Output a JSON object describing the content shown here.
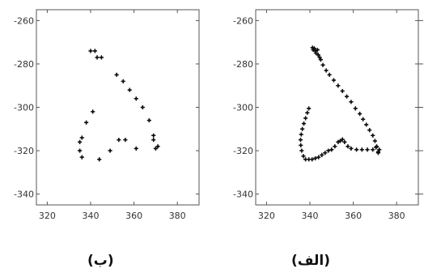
{
  "chart_data": [
    {
      "type": "scatter",
      "caption": "(ب)",
      "xlim": [
        315,
        390
      ],
      "ylim": [
        -345,
        -255
      ],
      "xticks": [
        "320",
        "340",
        "360",
        "380"
      ],
      "yticks": [
        "-260",
        "-280",
        "-300",
        "-320",
        "-340"
      ],
      "x": [
        340,
        342,
        343,
        345,
        352,
        355,
        358,
        361,
        364,
        367,
        369,
        371,
        370,
        369,
        361,
        356,
        353,
        349,
        344,
        336,
        335,
        335,
        336,
        338,
        341
      ],
      "y": [
        -274,
        -274,
        -277,
        -277,
        -285,
        -288,
        -292,
        -296,
        -300,
        -306,
        -313,
        -318,
        -319,
        -315,
        -319,
        -315,
        -315,
        -320,
        -324,
        -323,
        -320,
        -316,
        -314,
        -307,
        -302
      ],
      "grid": false
    },
    {
      "type": "scatter",
      "caption": "(الف)",
      "xlim": [
        315,
        390
      ],
      "ylim": [
        -345,
        -255
      ],
      "xticks": [
        "320",
        "340",
        "360",
        "380"
      ],
      "yticks": [
        "-260",
        "-280",
        "-300",
        "-320",
        "-340"
      ],
      "x": [
        341.2,
        341.5,
        342.0,
        342.5,
        342.8,
        343.5,
        343.8,
        344.5,
        345.0,
        346.0,
        347.5,
        349.0,
        351.0,
        353.0,
        355.0,
        357.0,
        359.0,
        361.0,
        363.0,
        364.5,
        366.0,
        367.5,
        369.0,
        370.0,
        370.8,
        371.5,
        372.0,
        371.5,
        370.5,
        369.0,
        366.5,
        364.0,
        361.5,
        359.0,
        357.5,
        356.0,
        355.0,
        354.0,
        353.0,
        351.5,
        350.0,
        348.5,
        347.0,
        345.5,
        344.0,
        342.5,
        341.0,
        339.5,
        338.0,
        337.0,
        336.2,
        335.8,
        335.7,
        336.0,
        336.5,
        337.2,
        338.0,
        338.8,
        339.5
      ],
      "y": [
        -272.5,
        -273.5,
        -272.8,
        -274.0,
        -275.0,
        -273.5,
        -275.8,
        -277.0,
        -278.0,
        -280.5,
        -283.0,
        -285.0,
        -287.5,
        -290.0,
        -292.5,
        -295.0,
        -297.5,
        -300.5,
        -303.0,
        -305.5,
        -308.0,
        -310.5,
        -313.0,
        -315.5,
        -318.0,
        -320.5,
        -319.5,
        -321.0,
        -318.5,
        -319.5,
        -319.5,
        -319.5,
        -319.5,
        -319.0,
        -318.0,
        -316.0,
        -314.8,
        -315.5,
        -316.0,
        -318.0,
        -319.5,
        -320.0,
        -321.0,
        -322.0,
        -323.0,
        -323.5,
        -324.0,
        -324.0,
        -324.0,
        -322.5,
        -320.0,
        -317.5,
        -315.0,
        -312.5,
        -310.0,
        -307.5,
        -305.0,
        -302.5,
        -300.5
      ],
      "grid": false
    }
  ]
}
